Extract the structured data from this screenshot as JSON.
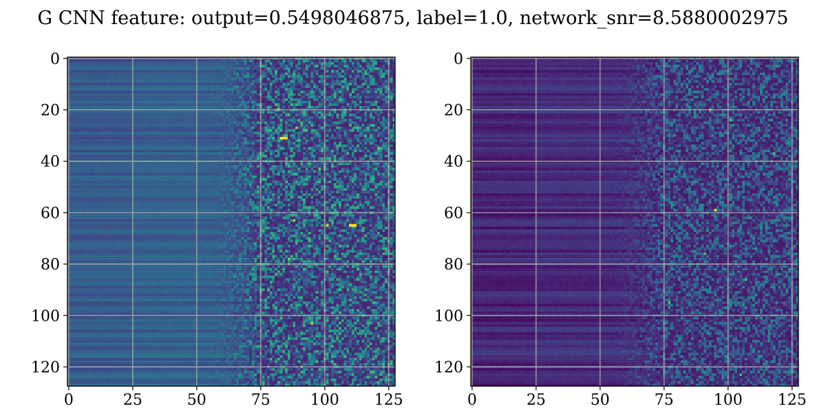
{
  "chart_data": {
    "title": "G CNN feature: output=0.5498046875, label=1.0, network_snr=8.5880002975",
    "panels": [
      {
        "type": "heatmap",
        "colormap": "viridis",
        "rows": 128,
        "cols": 128,
        "xlim": [
          0,
          127
        ],
        "ylim": [
          127,
          0
        ],
        "xticks": [
          0,
          25,
          50,
          75,
          100,
          125
        ],
        "yticks": [
          0,
          20,
          40,
          60,
          80,
          100,
          120
        ],
        "grid": true,
        "structure": {
          "smooth_region_cols": [
            0,
            50
          ],
          "transition_cols": [
            50,
            75
          ],
          "noisy_region_cols": [
            75,
            127
          ],
          "smooth_level": 0.3,
          "noisy_level": 0.28,
          "hotspots": [
            {
              "row": 31,
              "col": 83,
              "value": 1.0
            },
            {
              "row": 31,
              "col": 84,
              "value": 1.0
            },
            {
              "row": 31,
              "col": 85,
              "value": 0.95
            },
            {
              "row": 65,
              "col": 101,
              "value": 0.9
            },
            {
              "row": 65,
              "col": 110,
              "value": 1.0
            },
            {
              "row": 65,
              "col": 111,
              "value": 1.0
            },
            {
              "row": 65,
              "col": 112,
              "value": 1.0
            },
            {
              "row": 63,
              "col": 88,
              "value": 0.85
            },
            {
              "row": 27,
              "col": 89,
              "value": 0.85
            },
            {
              "row": 35,
              "col": 121,
              "value": 0.8
            },
            {
              "row": 103,
              "col": 95,
              "value": 0.85
            },
            {
              "row": 78,
              "col": 86,
              "value": 0.8
            },
            {
              "row": 20,
              "col": 82,
              "value": 0.8
            },
            {
              "row": 43,
              "col": 98,
              "value": 0.75
            }
          ]
        }
      },
      {
        "type": "heatmap",
        "colormap": "viridis",
        "rows": 128,
        "cols": 128,
        "xlim": [
          0,
          127
        ],
        "ylim": [
          127,
          0
        ],
        "xticks": [
          0,
          25,
          50,
          75,
          100,
          125
        ],
        "yticks": [
          0,
          20,
          40,
          60,
          80,
          100,
          120
        ],
        "grid": true,
        "structure": {
          "smooth_region_cols": [
            0,
            50
          ],
          "transition_cols": [
            50,
            75
          ],
          "noisy_region_cols": [
            75,
            127
          ],
          "smooth_level": 0.12,
          "noisy_level": 0.2,
          "hotspots": [
            {
              "row": 59,
              "col": 95,
              "value": 1.0
            },
            {
              "row": 20,
              "col": 93,
              "value": 0.8
            },
            {
              "row": 95,
              "col": 77,
              "value": 0.75
            },
            {
              "row": 76,
              "col": 91,
              "value": 0.7
            },
            {
              "row": 37,
              "col": 118,
              "value": 0.7
            },
            {
              "row": 86,
              "col": 107,
              "value": 0.65
            },
            {
              "row": 24,
              "col": 101,
              "value": 0.7
            },
            {
              "row": 123,
              "col": 105,
              "value": 0.7
            }
          ]
        }
      }
    ]
  }
}
